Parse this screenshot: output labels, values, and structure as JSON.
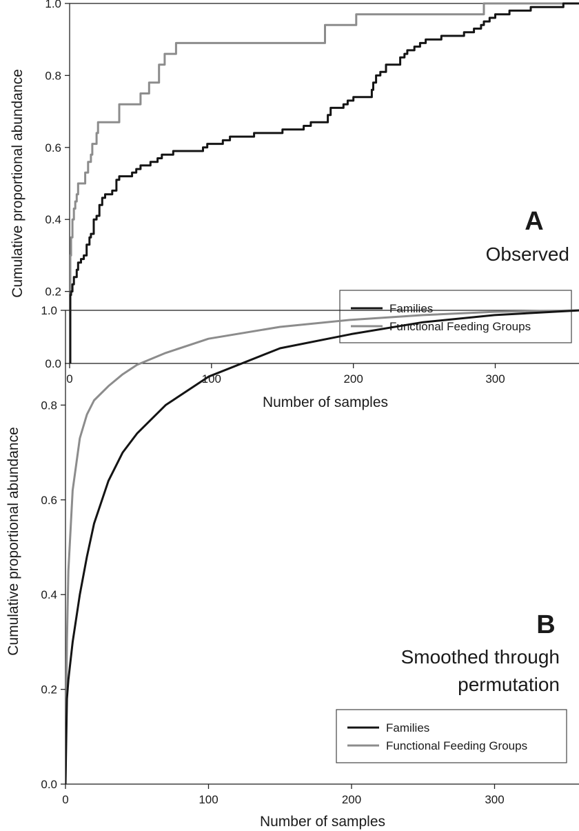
{
  "chart_data": [
    {
      "type": "line",
      "panel_letter": "A",
      "subtitle_lines": [
        "Observed"
      ],
      "xlabel": "Number of samples",
      "ylabel": "Cumulative proportional abundance",
      "xlim": [
        0,
        360
      ],
      "ylim": [
        0,
        1.0
      ],
      "x_ticks": [
        0,
        100,
        200,
        300
      ],
      "y_ticks": [
        0.0,
        0.2,
        0.4,
        0.6,
        0.8,
        1.0
      ],
      "x_tick_labels": [
        "0",
        "100",
        "200",
        "300"
      ],
      "y_tick_labels": [
        "0.0",
        "0.2",
        "0.4",
        "0.6",
        "0.8",
        "1.0"
      ],
      "step": true,
      "grid": false,
      "legend_position": "bottom-right",
      "series": [
        {
          "name": "Families",
          "color": "#141414",
          "points": [
            [
              0,
              0
            ],
            [
              0.5,
              0.19
            ],
            [
              1,
              0.2
            ],
            [
              2,
              0.22
            ],
            [
              3,
              0.24
            ],
            [
              5,
              0.26
            ],
            [
              6,
              0.28
            ],
            [
              8,
              0.29
            ],
            [
              10,
              0.3
            ],
            [
              12,
              0.33
            ],
            [
              14,
              0.35
            ],
            [
              15,
              0.36
            ],
            [
              17,
              0.4
            ],
            [
              19,
              0.41
            ],
            [
              21,
              0.44
            ],
            [
              23,
              0.46
            ],
            [
              25,
              0.47
            ],
            [
              28,
              0.47
            ],
            [
              30,
              0.48
            ],
            [
              33,
              0.51
            ],
            [
              35,
              0.52
            ],
            [
              40,
              0.52
            ],
            [
              44,
              0.53
            ],
            [
              47,
              0.54
            ],
            [
              50,
              0.55
            ],
            [
              55,
              0.55
            ],
            [
              57,
              0.56
            ],
            [
              62,
              0.57
            ],
            [
              65,
              0.58
            ],
            [
              70,
              0.58
            ],
            [
              73,
              0.59
            ],
            [
              78,
              0.59
            ],
            [
              94,
              0.6
            ],
            [
              97,
              0.61
            ],
            [
              105,
              0.61
            ],
            [
              108,
              0.62
            ],
            [
              113,
              0.63
            ],
            [
              125,
              0.63
            ],
            [
              130,
              0.64
            ],
            [
              145,
              0.64
            ],
            [
              150,
              0.65
            ],
            [
              160,
              0.65
            ],
            [
              165,
              0.66
            ],
            [
              170,
              0.67
            ],
            [
              178,
              0.67
            ],
            [
              182,
              0.69
            ],
            [
              184,
              0.71
            ],
            [
              190,
              0.71
            ],
            [
              193,
              0.72
            ],
            [
              196,
              0.73
            ],
            [
              200,
              0.74
            ],
            [
              210,
              0.74
            ],
            [
              213,
              0.76
            ],
            [
              214,
              0.78
            ],
            [
              216,
              0.8
            ],
            [
              219,
              0.81
            ],
            [
              223,
              0.83
            ],
            [
              230,
              0.83
            ],
            [
              233,
              0.85
            ],
            [
              236,
              0.86
            ],
            [
              238,
              0.87
            ],
            [
              243,
              0.88
            ],
            [
              247,
              0.89
            ],
            [
              251,
              0.9
            ],
            [
              258,
              0.9
            ],
            [
              262,
              0.91
            ],
            [
              275,
              0.91
            ],
            [
              278,
              0.92
            ],
            [
              285,
              0.93
            ],
            [
              290,
              0.94
            ],
            [
              292,
              0.95
            ],
            [
              296,
              0.96
            ],
            [
              300,
              0.97
            ],
            [
              310,
              0.98
            ],
            [
              320,
              0.98
            ],
            [
              325,
              0.99
            ],
            [
              345,
              0.99
            ],
            [
              348,
              1.0
            ]
          ]
        },
        {
          "name": "Functional Feeding Groups",
          "color": "#8c8c8c",
          "points": [
            [
              0,
              0
            ],
            [
              0.5,
              0.3
            ],
            [
              1,
              0.35
            ],
            [
              2,
              0.4
            ],
            [
              3,
              0.43
            ],
            [
              4,
              0.45
            ],
            [
              5,
              0.47
            ],
            [
              6,
              0.5
            ],
            [
              10,
              0.5
            ],
            [
              11,
              0.53
            ],
            [
              13,
              0.56
            ],
            [
              15,
              0.58
            ],
            [
              16,
              0.61
            ],
            [
              18,
              0.61
            ],
            [
              19,
              0.64
            ],
            [
              20,
              0.67
            ],
            [
              33,
              0.67
            ],
            [
              35,
              0.72
            ],
            [
              48,
              0.72
            ],
            [
              50,
              0.75
            ],
            [
              55,
              0.75
            ],
            [
              56,
              0.78
            ],
            [
              62,
              0.78
            ],
            [
              63,
              0.83
            ],
            [
              67,
              0.86
            ],
            [
              75,
              0.89
            ],
            [
              178,
              0.89
            ],
            [
              180,
              0.94
            ],
            [
              200,
              0.94
            ],
            [
              202,
              0.97
            ],
            [
              290,
              0.97
            ],
            [
              292,
              1.0
            ]
          ]
        }
      ]
    },
    {
      "type": "line",
      "panel_letter": "B",
      "subtitle_lines": [
        "Smoothed through",
        "permutation"
      ],
      "xlabel": "Number of samples",
      "ylabel": "Cumulative proportional abundance",
      "xlim": [
        0,
        360
      ],
      "ylim": [
        0,
        1.0
      ],
      "x_ticks": [
        0,
        100,
        200,
        300
      ],
      "y_ticks": [
        0.0,
        0.2,
        0.4,
        0.6,
        0.8,
        1.0
      ],
      "x_tick_labels": [
        "0",
        "100",
        "200",
        "300"
      ],
      "y_tick_labels": [
        "0.0",
        "0.2",
        "0.4",
        "0.6",
        "0.8",
        "1.0"
      ],
      "step": false,
      "grid": false,
      "legend_position": "bottom-right",
      "series": [
        {
          "name": "Families",
          "color": "#141414",
          "points": [
            [
              0,
              0
            ],
            [
              1,
              0.18
            ],
            [
              2,
              0.22
            ],
            [
              5,
              0.3
            ],
            [
              10,
              0.4
            ],
            [
              15,
              0.48
            ],
            [
              20,
              0.55
            ],
            [
              30,
              0.64
            ],
            [
              40,
              0.7
            ],
            [
              50,
              0.74
            ],
            [
              70,
              0.8
            ],
            [
              100,
              0.86
            ],
            [
              150,
              0.92
            ],
            [
              200,
              0.95
            ],
            [
              250,
              0.975
            ],
            [
              300,
              0.99
            ],
            [
              360,
              1.0
            ]
          ]
        },
        {
          "name": "Functional Feeding Groups",
          "color": "#8c8c8c",
          "points": [
            [
              0,
              0
            ],
            [
              1,
              0.3
            ],
            [
              2,
              0.45
            ],
            [
              5,
              0.62
            ],
            [
              10,
              0.73
            ],
            [
              15,
              0.78
            ],
            [
              20,
              0.81
            ],
            [
              30,
              0.84
            ],
            [
              40,
              0.865
            ],
            [
              50,
              0.885
            ],
            [
              70,
              0.91
            ],
            [
              100,
              0.94
            ],
            [
              150,
              0.965
            ],
            [
              200,
              0.98
            ],
            [
              250,
              0.99
            ],
            [
              300,
              0.997
            ],
            [
              360,
              1.0
            ]
          ]
        }
      ]
    }
  ]
}
